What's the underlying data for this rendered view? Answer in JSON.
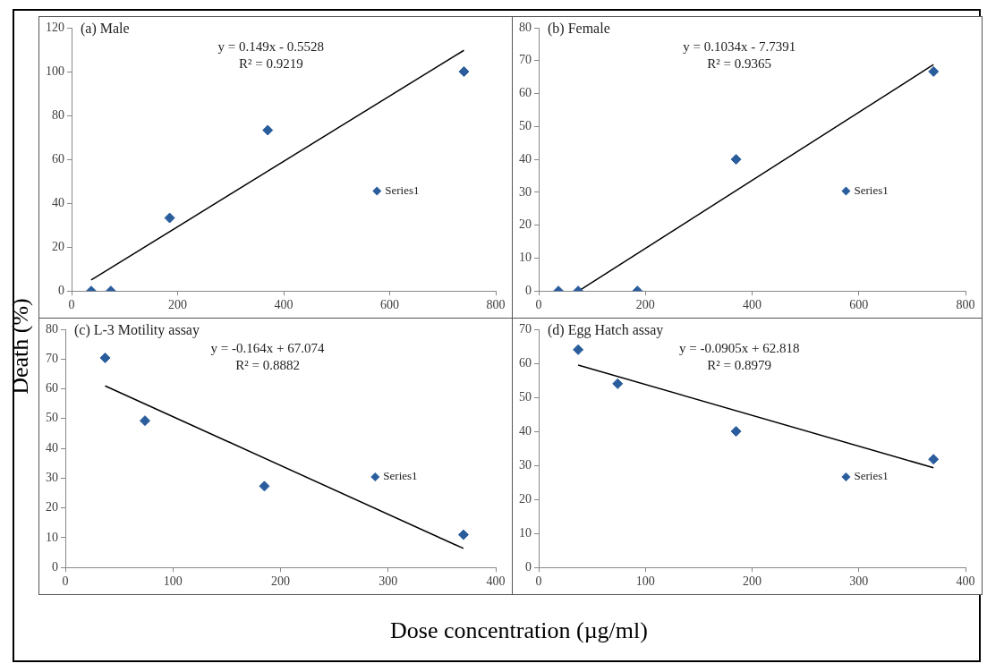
{
  "chart_data": [
    {
      "type": "scatter",
      "title": "(a) Male",
      "ylabel": "Death (%)",
      "xlabel": "Dose concentration (µg/ml)",
      "annotations": [
        "y = 0.149x - 0.5528",
        "R² = 0.9219"
      ],
      "xlim": [
        0,
        800
      ],
      "xticks": [
        0,
        200,
        400,
        600,
        800
      ],
      "ylim": [
        0,
        120
      ],
      "yticks": [
        0,
        20,
        40,
        60,
        80,
        100,
        120
      ],
      "grid": false,
      "legend": "right",
      "marker": "diamond",
      "series": [
        {
          "name": "Series1",
          "color": "#2a5d9c",
          "x": [
            37,
            74,
            185,
            370,
            740
          ],
          "values": [
            0,
            0,
            33.3,
            73.3,
            100
          ]
        },
        {
          "type": "line",
          "color": "#000000",
          "marker": "none",
          "x": [
            37,
            740
          ],
          "values": [
            5,
            109.7
          ]
        }
      ]
    },
    {
      "type": "scatter",
      "title": "(b) Female",
      "annotations": [
        "y = 0.1034x - 7.7391",
        "R² = 0.9365"
      ],
      "xlim": [
        0,
        800
      ],
      "xticks": [
        0,
        200,
        400,
        600,
        800
      ],
      "ylim": [
        0,
        80
      ],
      "yticks": [
        0,
        10,
        20,
        30,
        40,
        50,
        60,
        70,
        80
      ],
      "grid": false,
      "legend": "right",
      "marker": "diamond",
      "series": [
        {
          "name": "Series1",
          "color": "#2a5d9c",
          "x": [
            37,
            74,
            185,
            370,
            740
          ],
          "values": [
            0,
            0,
            0,
            40,
            66.7
          ]
        },
        {
          "type": "line",
          "color": "#000000",
          "marker": "none",
          "x": [
            75,
            740
          ],
          "values": [
            0,
            68.8
          ]
        }
      ]
    },
    {
      "type": "scatter",
      "title": "(c) L-3 Motility assay",
      "annotations": [
        "y = -0.164x + 67.074",
        "R² = 0.8882"
      ],
      "xlim": [
        0,
        400
      ],
      "xticks": [
        0,
        100,
        200,
        300,
        400
      ],
      "ylim": [
        0,
        80
      ],
      "yticks": [
        0,
        10,
        20,
        30,
        40,
        50,
        60,
        70,
        80
      ],
      "grid": false,
      "legend": "right",
      "marker": "diamond",
      "series": [
        {
          "name": "Series1",
          "color": "#2a5d9c",
          "x": [
            37,
            74,
            185,
            370
          ],
          "values": [
            70.4,
            49.3,
            27.3,
            11
          ]
        },
        {
          "type": "line",
          "color": "#000000",
          "marker": "none",
          "x": [
            37,
            370
          ],
          "values": [
            61,
            6.4
          ]
        }
      ]
    },
    {
      "type": "scatter",
      "title": "(d) Egg Hatch assay",
      "annotations": [
        "y = -0.0905x + 62.818",
        "R² = 0.8979"
      ],
      "xlim": [
        0,
        400
      ],
      "xticks": [
        0,
        100,
        200,
        300,
        400
      ],
      "ylim": [
        0,
        70
      ],
      "yticks": [
        0,
        10,
        20,
        30,
        40,
        50,
        60,
        70
      ],
      "grid": false,
      "legend": "right",
      "marker": "diamond",
      "series": [
        {
          "name": "Series1",
          "color": "#2a5d9c",
          "x": [
            37,
            74,
            185,
            370
          ],
          "values": [
            64,
            54,
            40,
            31.8
          ]
        },
        {
          "type": "line",
          "color": "#000000",
          "marker": "none",
          "x": [
            37,
            370
          ],
          "values": [
            59.5,
            29.3
          ]
        }
      ]
    }
  ]
}
